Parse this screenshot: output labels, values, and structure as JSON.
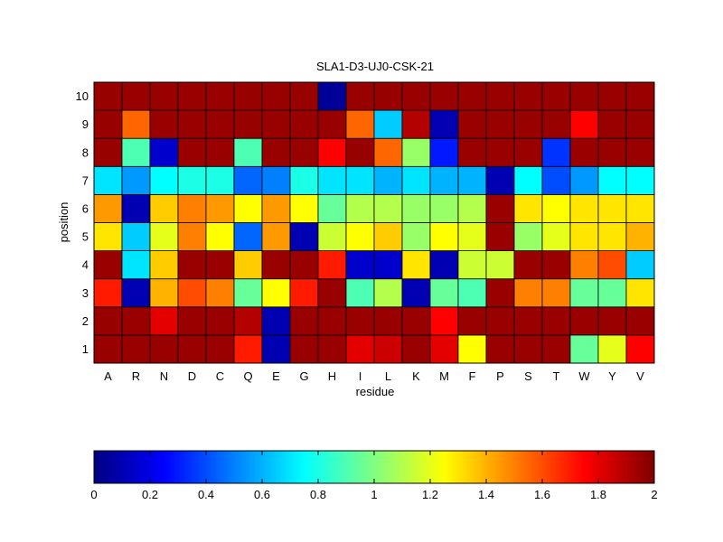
{
  "chart_data": {
    "type": "heatmap",
    "title": "SLA1-D3-UJ0-CSK-21",
    "xlabel": "residue",
    "ylabel": "position",
    "x_categories": [
      "A",
      "R",
      "N",
      "D",
      "C",
      "Q",
      "E",
      "G",
      "H",
      "I",
      "L",
      "K",
      "M",
      "F",
      "P",
      "S",
      "T",
      "W",
      "Y",
      "V"
    ],
    "y_categories": [
      "1",
      "2",
      "3",
      "4",
      "5",
      "6",
      "7",
      "8",
      "9",
      "10"
    ],
    "values": [
      [
        1.95,
        1.95,
        1.95,
        1.95,
        1.95,
        1.7,
        0.1,
        1.95,
        1.95,
        1.8,
        1.85,
        1.95,
        1.8,
        1.25,
        1.95,
        1.95,
        1.95,
        0.95,
        1.2,
        1.75
      ],
      [
        1.95,
        1.95,
        1.8,
        1.95,
        1.95,
        1.9,
        0.1,
        1.95,
        1.95,
        1.95,
        1.95,
        1.95,
        1.75,
        1.95,
        1.95,
        1.95,
        1.95,
        1.95,
        1.95,
        1.95
      ],
      [
        1.7,
        0.1,
        1.4,
        1.6,
        1.5,
        0.95,
        1.25,
        1.7,
        1.95,
        0.9,
        1.1,
        0.1,
        0.95,
        0.9,
        1.95,
        1.5,
        1.5,
        0.95,
        0.95,
        1.3
      ],
      [
        1.95,
        0.7,
        1.35,
        1.95,
        1.95,
        1.35,
        1.95,
        1.95,
        1.7,
        0.15,
        0.15,
        1.3,
        0.1,
        1.15,
        1.15,
        1.95,
        1.95,
        1.5,
        1.6,
        0.65
      ],
      [
        1.3,
        0.65,
        1.2,
        1.5,
        1.25,
        0.45,
        1.45,
        0.1,
        1.15,
        1.25,
        1.35,
        1.05,
        1.25,
        1.2,
        1.95,
        1.05,
        1.2,
        1.3,
        1.3,
        1.4
      ],
      [
        1.45,
        0.1,
        1.35,
        1.5,
        1.45,
        1.25,
        1.45,
        1.25,
        0.95,
        1.1,
        1.1,
        1.05,
        1.05,
        1.1,
        1.95,
        1.3,
        1.25,
        1.3,
        1.3,
        1.3
      ],
      [
        0.7,
        0.55,
        0.75,
        0.8,
        0.8,
        0.45,
        0.5,
        0.8,
        0.7,
        0.7,
        0.6,
        0.7,
        0.6,
        0.6,
        0.1,
        0.75,
        0.4,
        0.55,
        0.75,
        0.75
      ],
      [
        1.95,
        0.9,
        0.15,
        1.95,
        1.95,
        0.9,
        1.95,
        1.95,
        1.75,
        1.95,
        1.55,
        1.05,
        0.3,
        1.95,
        1.95,
        1.95,
        0.35,
        1.95,
        1.95,
        1.95
      ],
      [
        1.95,
        1.55,
        1.95,
        1.95,
        1.95,
        1.95,
        1.95,
        1.95,
        1.95,
        1.55,
        0.65,
        1.9,
        0.1,
        1.95,
        1.95,
        1.95,
        1.95,
        1.75,
        1.95,
        1.95
      ],
      [
        1.95,
        1.95,
        1.95,
        1.95,
        1.95,
        1.95,
        1.95,
        1.95,
        0.05,
        1.95,
        1.95,
        1.95,
        1.95,
        1.95,
        1.95,
        1.95,
        1.95,
        1.95,
        1.95,
        1.95
      ]
    ],
    "value_range": [
      0,
      2
    ],
    "colormap": "jet",
    "colorbar": {
      "orientation": "horizontal",
      "position": "bottom",
      "ticks": [
        "0",
        "0.2",
        "0.4",
        "0.6",
        "0.8",
        "1",
        "1.2",
        "1.4",
        "1.6",
        "1.8",
        "2"
      ],
      "tick_values": [
        0,
        0.2,
        0.4,
        0.6,
        0.8,
        1,
        1.2,
        1.4,
        1.6,
        1.8,
        2
      ]
    },
    "grid": true
  }
}
